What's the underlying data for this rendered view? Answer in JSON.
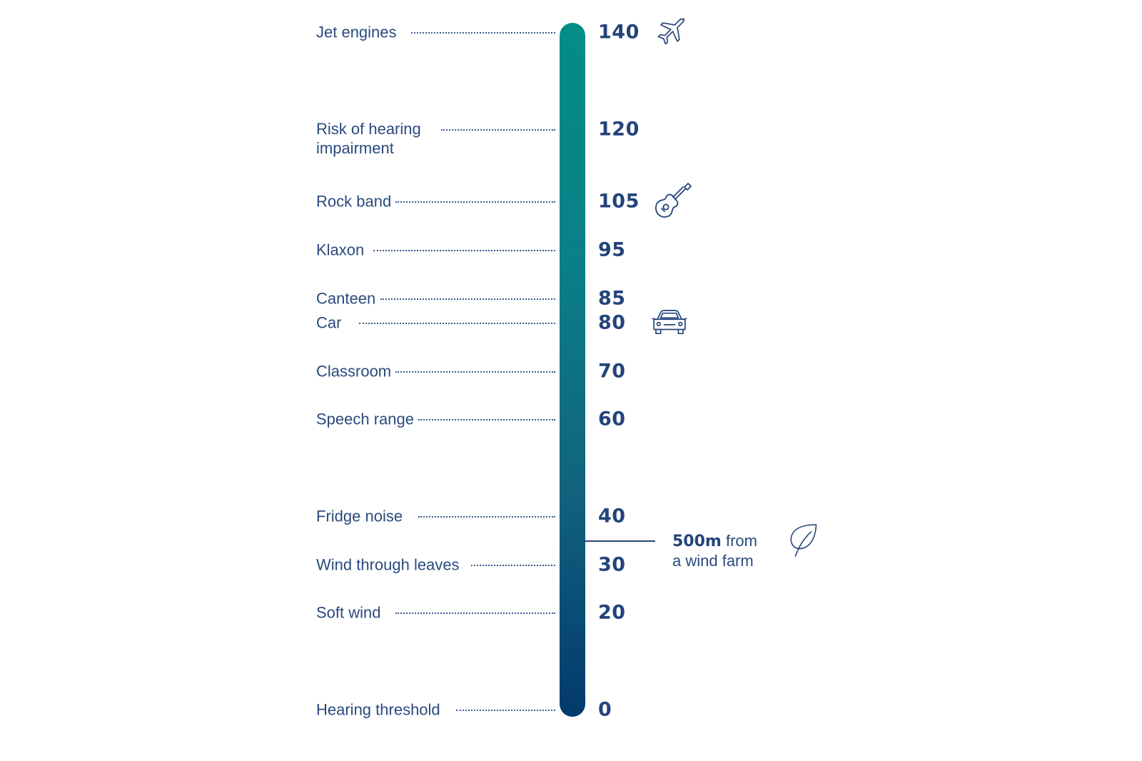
{
  "scale": {
    "max": 140,
    "levels": [
      {
        "label": "Jet engines",
        "value": "140",
        "db": 140
      },
      {
        "label": "Risk of hearing\nimpairment",
        "value": "120",
        "db": 120
      },
      {
        "label": "Rock band",
        "value": "105",
        "db": 105
      },
      {
        "label": "Klaxon",
        "value": "95",
        "db": 95
      },
      {
        "label": "Canteen",
        "value": "85",
        "db": 85
      },
      {
        "label": "Car",
        "value": "80",
        "db": 80
      },
      {
        "label": "Classroom",
        "value": "70",
        "db": 70
      },
      {
        "label": "Speech range",
        "value": "60",
        "db": 60
      },
      {
        "label": "Fridge noise",
        "value": "40",
        "db": 40
      },
      {
        "label": "Wind through leaves",
        "value": "30",
        "db": 30
      },
      {
        "label": "Soft wind",
        "value": "20",
        "db": 20
      },
      {
        "label": "Hearing threshold",
        "value": "0",
        "db": 0
      }
    ],
    "colors": {
      "top": "#038d86",
      "bottom": "#023a6c",
      "text": "#23447a"
    }
  },
  "marker": {
    "db": 35,
    "strong": "500m",
    "line1_rest": " from",
    "line2": "a wind farm",
    "icon": "leaf-icon"
  },
  "icons": [
    {
      "name": "airplane-icon",
      "db": 140
    },
    {
      "name": "guitar-icon",
      "db": 105
    },
    {
      "name": "car-icon",
      "db": 80
    }
  ]
}
